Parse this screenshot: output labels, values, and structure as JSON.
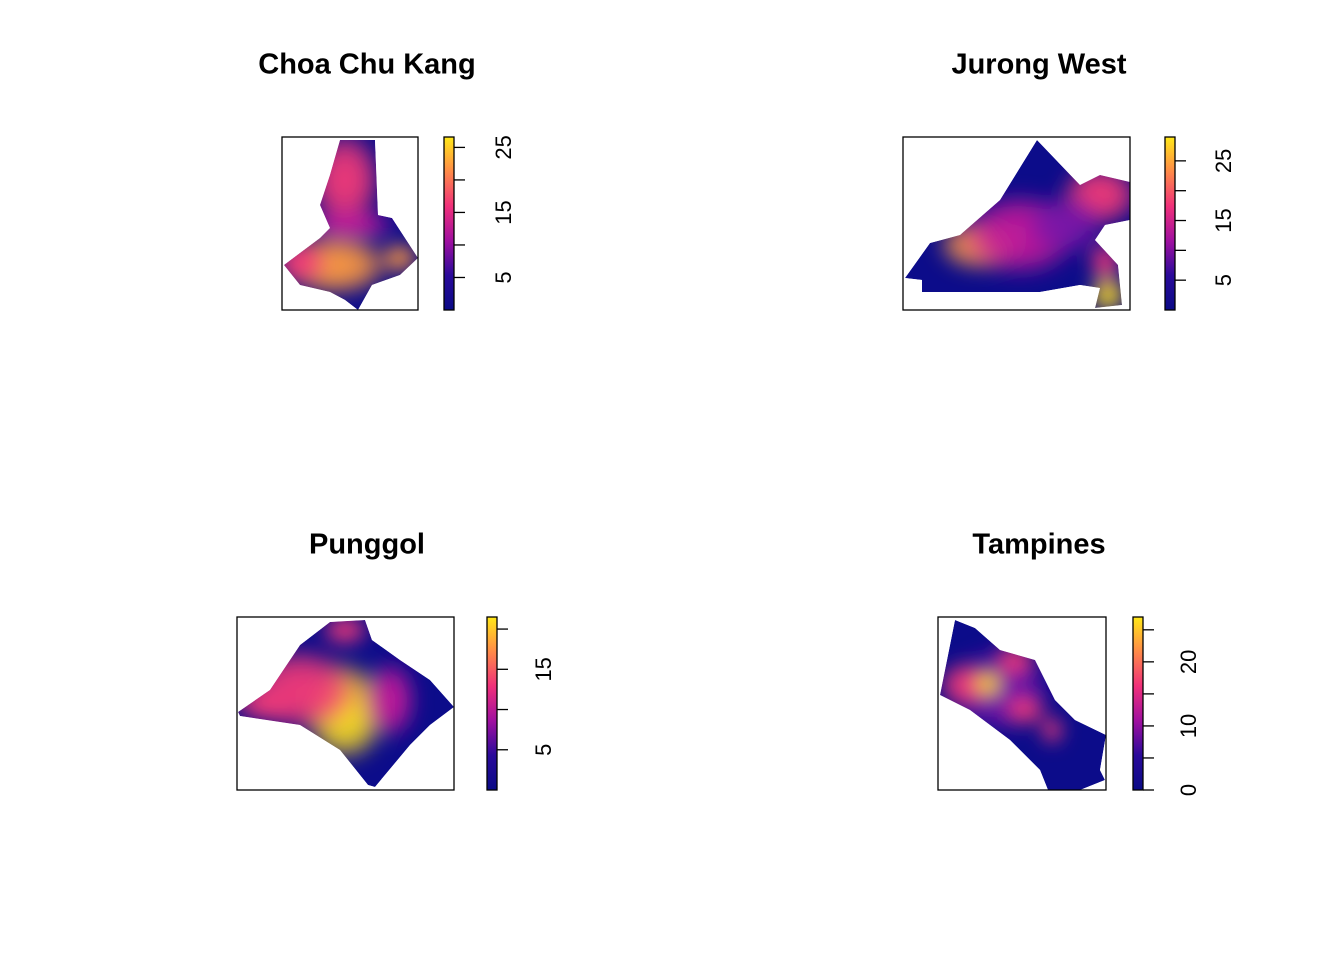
{
  "chart_data": [
    {
      "type": "density-map",
      "title": "Choa Chu Kang",
      "zlim": [
        0,
        26.6
      ],
      "zticks": [
        5,
        10,
        15,
        20,
        25
      ],
      "zlabels": [
        5,
        15,
        25
      ]
    },
    {
      "type": "density-map",
      "title": "Jurong West",
      "zlim": [
        0,
        29
      ],
      "zticks": [
        5,
        10,
        15,
        20,
        25
      ],
      "zlabels": [
        5,
        15,
        25
      ]
    },
    {
      "type": "density-map",
      "title": "Punggol",
      "zlim": [
        0,
        21.5
      ],
      "zticks": [
        5,
        10,
        15,
        20
      ],
      "zlabels": [
        5,
        15
      ]
    },
    {
      "type": "density-map",
      "title": "Tampines",
      "zlim": [
        0,
        27
      ],
      "zticks": [
        0,
        5,
        10,
        15,
        20,
        25
      ],
      "zlabels": [
        0,
        10,
        20
      ]
    }
  ]
}
